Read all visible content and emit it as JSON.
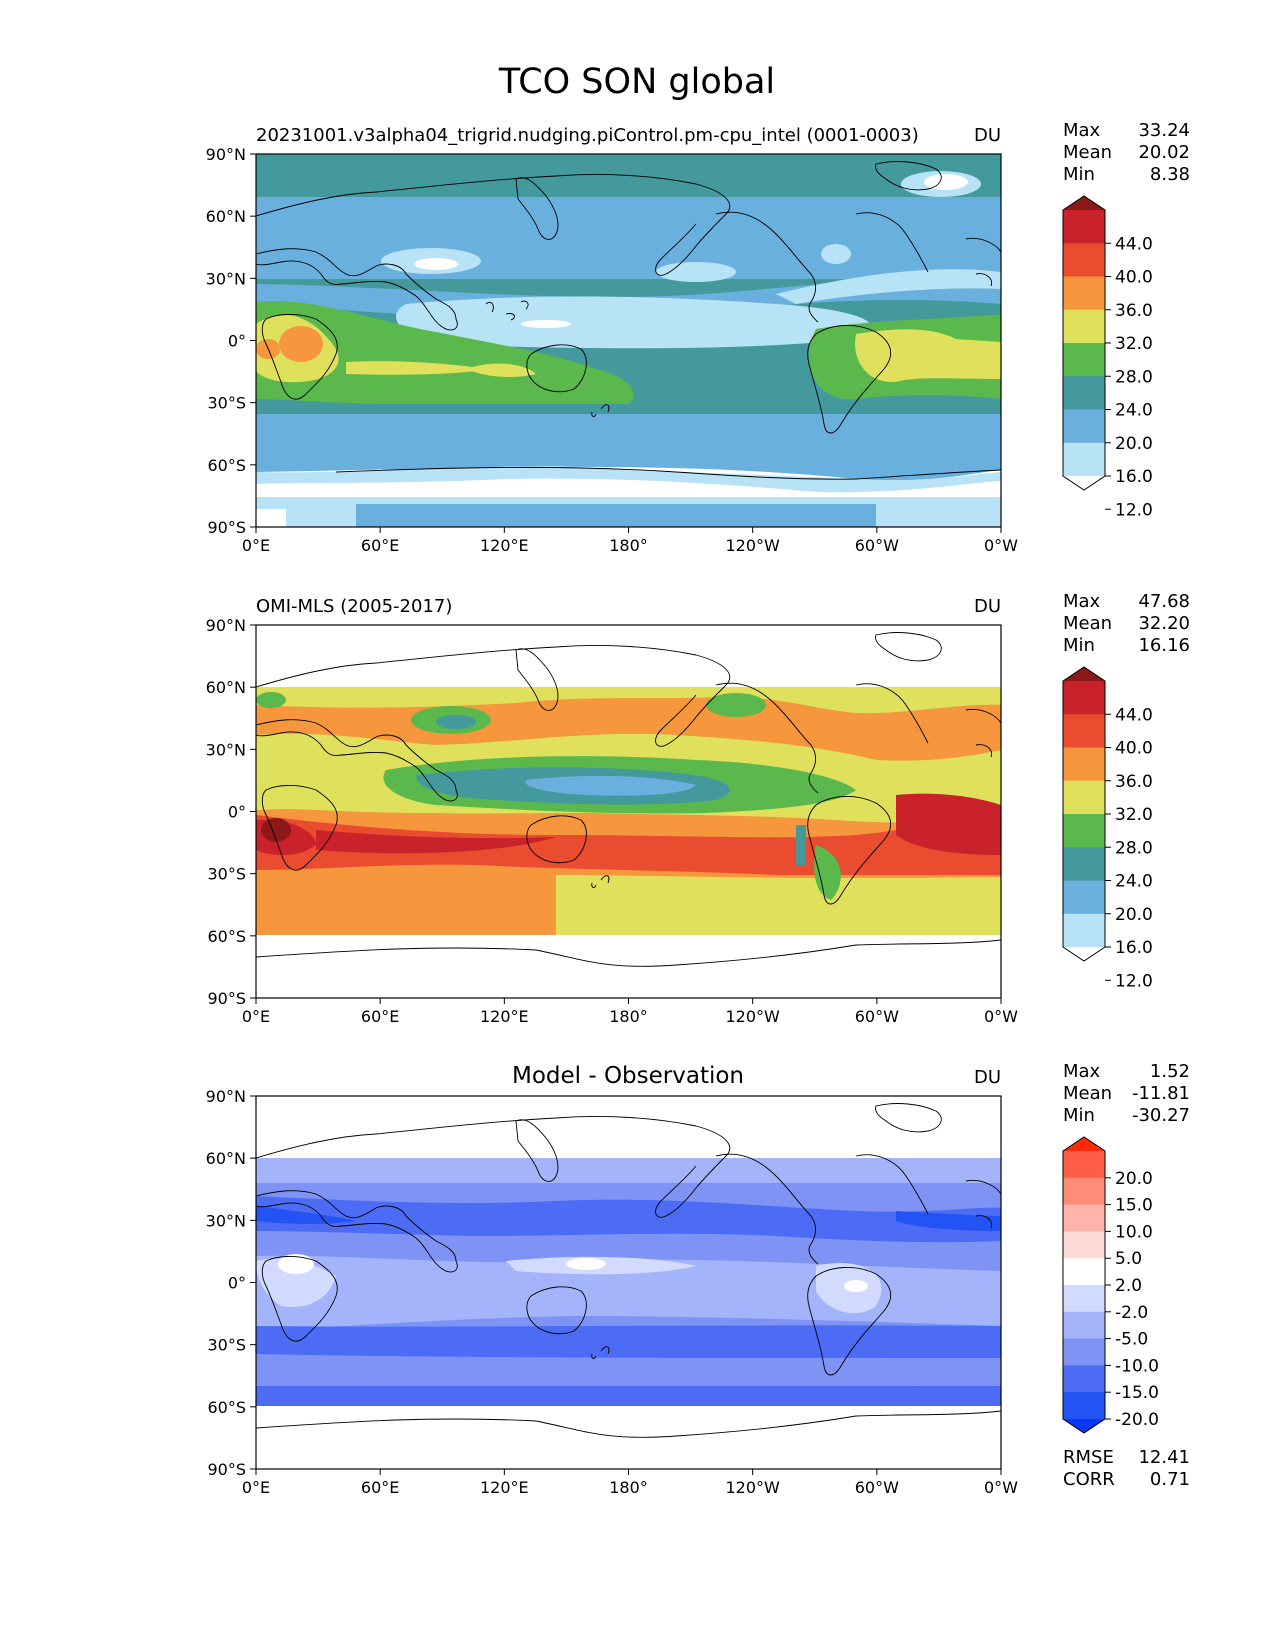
{
  "figure": {
    "title": "TCO SON global"
  },
  "axes": {
    "lat_ticks": [
      "90°N",
      "60°N",
      "30°N",
      "0°",
      "30°S",
      "60°S",
      "90°S"
    ],
    "lon_ticks": [
      "0°E",
      "60°E",
      "120°E",
      "180°",
      "120°W",
      "60°W",
      "0°W"
    ]
  },
  "panels": [
    {
      "id": "model",
      "left_title": "20231001.v3alpha04_trigrid.nudging.piControl.pm-cpu_intel (0001-0003)",
      "center_title": "",
      "units": "DU",
      "stats": [
        {
          "label": "Max",
          "value": "33.24"
        },
        {
          "label": "Mean",
          "value": "20.02"
        },
        {
          "label": "Min",
          "value": "8.38"
        }
      ],
      "colorbar": {
        "ticks": [
          "44.0",
          "40.0",
          "36.0",
          "32.0",
          "28.0",
          "24.0",
          "20.0",
          "16.0",
          "12.0"
        ],
        "colors": [
          "#8e1719",
          "#c9222a",
          "#e94c2e",
          "#f6963d",
          "#dfe05c",
          "#5bb84c",
          "#43999b",
          "#6ab0de",
          "#b8e2f6",
          "#ffffff"
        ]
      },
      "extra_stats": []
    },
    {
      "id": "obs",
      "left_title": "OMI-MLS (2005-2017)",
      "center_title": "",
      "units": "DU",
      "stats": [
        {
          "label": "Max",
          "value": "47.68"
        },
        {
          "label": "Mean",
          "value": "32.20"
        },
        {
          "label": "Min",
          "value": "16.16"
        }
      ],
      "colorbar": {
        "ticks": [
          "44.0",
          "40.0",
          "36.0",
          "32.0",
          "28.0",
          "24.0",
          "20.0",
          "16.0",
          "12.0"
        ],
        "colors": [
          "#8e1719",
          "#c9222a",
          "#e94c2e",
          "#f6963d",
          "#dfe05c",
          "#5bb84c",
          "#43999b",
          "#6ab0de",
          "#b8e2f6",
          "#ffffff"
        ]
      },
      "extra_stats": []
    },
    {
      "id": "diff",
      "left_title": "",
      "center_title": "Model - Observation",
      "units": "DU",
      "stats": [
        {
          "label": "Max",
          "value": "1.52"
        },
        {
          "label": "Mean",
          "value": "-11.81"
        },
        {
          "label": "Min",
          "value": "-30.27"
        }
      ],
      "colorbar": {
        "ticks": [
          "20.0",
          "15.0",
          "10.0",
          "5.0",
          "2.0",
          "-2.0",
          "-5.0",
          "-10.0",
          "-15.0",
          "-20.0"
        ],
        "colors": [
          "#ff2a0a",
          "#ff5e45",
          "#ff8c78",
          "#ffb3aa",
          "#ffd9d4",
          "#ffffff",
          "#d2dbff",
          "#a3b4fb",
          "#7f93f5",
          "#4d6cf5",
          "#2453f5",
          "#0a37f5"
        ]
      },
      "extra_stats": [
        {
          "label": "RMSE",
          "value": "12.41"
        },
        {
          "label": "CORR",
          "value": "0.71"
        }
      ]
    }
  ]
}
